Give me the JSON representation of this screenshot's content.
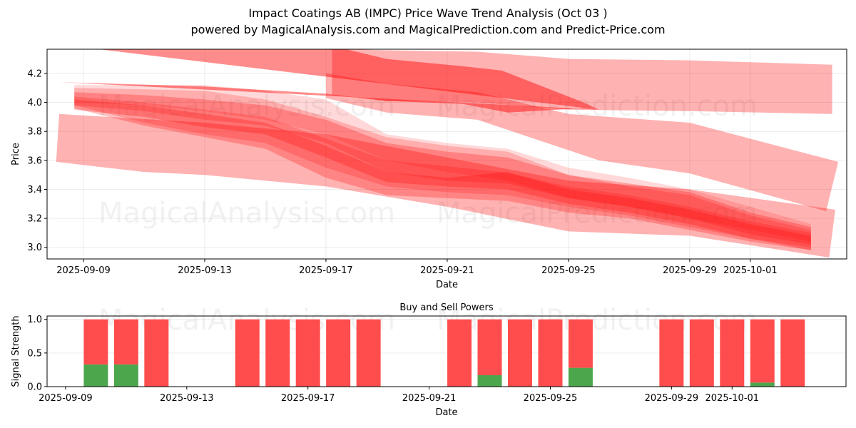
{
  "header": {
    "title": "Impact Coatings AB (IMPC) Price Wave Trend Analysis (Oct 03 )",
    "subtitle": "powered by MagicalAnalysis.com and MagicalPrediction.com and Predict-Price.com"
  },
  "watermarks": [
    "MagicalAnalysis.com",
    "MagicalPrediction.com"
  ],
  "chart_data": [
    {
      "type": "area",
      "title": "Price Wave Trend Analysis",
      "xlabel": "Date",
      "ylabel": "Price",
      "base_date": "2025-09-09",
      "xlim_days": [
        -1.2,
        25.18
      ],
      "ylim": [
        2.92,
        4.367
      ],
      "grid": true,
      "x_ticks": [
        {
          "day": 0,
          "label": "2025-09-09"
        },
        {
          "day": 4,
          "label": "2025-09-13"
        },
        {
          "day": 8,
          "label": "2025-09-17"
        },
        {
          "day": 12,
          "label": "2025-09-21"
        },
        {
          "day": 16,
          "label": "2025-09-25"
        },
        {
          "day": 20,
          "label": "2025-09-29"
        },
        {
          "day": 22,
          "label": "2025-10-01"
        }
      ],
      "y_ticks": [
        3.0,
        3.2,
        3.4,
        3.6,
        3.8,
        4.0,
        4.2
      ],
      "color": "#ff0000",
      "bands": [
        {
          "name": "upper-dark-band",
          "opacity": 0.45,
          "upper": [
            [
              -0.8,
              4.4
            ],
            [
              8,
              4.4
            ],
            [
              10,
              4.3
            ],
            [
              12.5,
              4.25
            ],
            [
              13.8,
              4.22
            ],
            [
              16.5,
              4.0
            ],
            [
              17,
              3.95
            ]
          ],
          "lower": [
            [
              -0.8,
              4.14
            ],
            [
              4,
              4.11
            ],
            [
              8,
              4.06
            ],
            [
              10,
              4.01
            ],
            [
              12.5,
              3.99
            ],
            [
              14,
              3.93
            ],
            [
              16.5,
              3.96
            ],
            [
              17,
              3.95
            ]
          ]
        },
        {
          "name": "upper-light-band",
          "opacity": 0.3,
          "upper": [
            [
              8.2,
              4.37
            ],
            [
              10,
              4.36
            ],
            [
              13,
              4.35
            ],
            [
              16,
              4.3
            ],
            [
              20,
              4.29
            ],
            [
              24.7,
              4.26
            ]
          ],
          "lower": [
            [
              24.7,
              3.92
            ],
            [
              20,
              3.94
            ],
            [
              16,
              3.95
            ],
            [
              13,
              4.0
            ],
            [
              10,
              4.01
            ],
            [
              8.2,
              4.05
            ]
          ]
        },
        {
          "name": "middle-wide-band",
          "opacity": 0.3,
          "upper": [
            [
              8,
              4.2
            ],
            [
              10,
              4.13
            ],
            [
              13,
              4.07
            ],
            [
              16,
              3.92
            ],
            [
              20,
              3.86
            ],
            [
              24.9,
              3.59
            ]
          ],
          "lower": [
            [
              24.5,
              3.25
            ],
            [
              20,
              3.51
            ],
            [
              17,
              3.6
            ],
            [
              13,
              3.88
            ],
            [
              10,
              3.93
            ],
            [
              8,
              4.03
            ]
          ]
        },
        {
          "name": "lower-wide-band",
          "opacity": 0.3,
          "upper": [
            [
              -0.8,
              3.92
            ],
            [
              4,
              3.86
            ],
            [
              8,
              3.78
            ],
            [
              12,
              3.62
            ],
            [
              16,
              3.46
            ],
            [
              20,
              3.4
            ],
            [
              24.8,
              3.26
            ]
          ],
          "lower": [
            [
              24.6,
              2.93
            ],
            [
              20,
              3.08
            ],
            [
              16,
              3.11
            ],
            [
              12,
              3.28
            ],
            [
              8,
              3.42
            ],
            [
              4,
              3.5
            ],
            [
              2,
              3.52
            ],
            [
              -0.9,
              3.59
            ]
          ]
        },
        {
          "name": "core-band-1",
          "opacity": 0.25,
          "upper": [
            [
              -0.3,
              4.07
            ],
            [
              2,
              4.05
            ],
            [
              4,
              4.02
            ],
            [
              6,
              3.98
            ],
            [
              8,
              3.88
            ],
            [
              10,
              3.72
            ],
            [
              12,
              3.66
            ],
            [
              14,
              3.62
            ],
            [
              16,
              3.5
            ],
            [
              18,
              3.44
            ],
            [
              20,
              3.38
            ],
            [
              22,
              3.24
            ],
            [
              24,
              3.14
            ]
          ],
          "lower": [
            [
              24,
              2.98
            ],
            [
              22,
              3.06
            ],
            [
              20,
              3.16
            ],
            [
              18,
              3.24
            ],
            [
              16,
              3.3
            ],
            [
              14,
              3.4
            ],
            [
              12,
              3.42
            ],
            [
              10,
              3.45
            ],
            [
              8,
              3.62
            ],
            [
              6,
              3.78
            ],
            [
              4,
              3.83
            ],
            [
              2,
              3.9
            ],
            [
              -0.3,
              3.95
            ]
          ]
        },
        {
          "name": "core-band-2",
          "opacity": 0.2,
          "upper": [
            [
              -0.3,
              4.1
            ],
            [
              2,
              4.09
            ],
            [
              4,
              4.08
            ],
            [
              6,
              4.02
            ],
            [
              8,
              3.9
            ],
            [
              10,
              3.76
            ],
            [
              12,
              3.7
            ],
            [
              14,
              3.66
            ],
            [
              16,
              3.5
            ],
            [
              18,
              3.42
            ],
            [
              20,
              3.36
            ],
            [
              22,
              3.22
            ],
            [
              24,
              3.12
            ]
          ],
          "lower": [
            [
              24,
              3.02
            ],
            [
              22,
              3.09
            ],
            [
              20,
              3.2
            ],
            [
              18,
              3.28
            ],
            [
              16,
              3.34
            ],
            [
              14,
              3.44
            ],
            [
              12,
              3.46
            ],
            [
              10,
              3.52
            ],
            [
              8,
              3.72
            ],
            [
              6,
              3.84
            ],
            [
              4,
              3.88
            ],
            [
              2,
              3.94
            ],
            [
              -0.3,
              3.98
            ]
          ]
        },
        {
          "name": "core-band-3",
          "opacity": 0.2,
          "upper": [
            [
              -0.3,
              4.04
            ],
            [
              2,
              4.0
            ],
            [
              4,
              3.95
            ],
            [
              6,
              3.9
            ],
            [
              8,
              3.75
            ],
            [
              10,
              3.6
            ],
            [
              12,
              3.56
            ],
            [
              13.8,
              3.52
            ],
            [
              16,
              3.42
            ],
            [
              18,
              3.36
            ],
            [
              20,
              3.28
            ],
            [
              22,
              3.18
            ],
            [
              24,
              3.1
            ]
          ],
          "lower": [
            [
              24,
              3.0
            ],
            [
              22,
              3.06
            ],
            [
              20,
              3.14
            ],
            [
              18,
              3.22
            ],
            [
              16,
              3.28
            ],
            [
              14,
              3.36
            ],
            [
              12,
              3.38
            ],
            [
              10,
              3.42
            ],
            [
              8,
              3.55
            ],
            [
              6,
              3.72
            ],
            [
              4,
              3.78
            ],
            [
              2,
              3.86
            ],
            [
              -0.3,
              3.98
            ]
          ]
        },
        {
          "name": "core-band-4",
          "opacity": 0.15,
          "upper": [
            [
              -0.3,
              4.12
            ],
            [
              2,
              4.12
            ],
            [
              4,
              4.12
            ],
            [
              6,
              4.08
            ],
            [
              8,
              4.02
            ],
            [
              10,
              3.78
            ],
            [
              12,
              3.72
            ],
            [
              14,
              3.68
            ],
            [
              16,
              3.55
            ],
            [
              18,
              3.48
            ],
            [
              20,
              3.4
            ],
            [
              22,
              3.28
            ],
            [
              24,
              3.16
            ]
          ],
          "lower": [
            [
              24,
              3.04
            ],
            [
              22,
              3.12
            ],
            [
              20,
              3.2
            ],
            [
              18,
              3.28
            ],
            [
              16,
              3.34
            ],
            [
              14,
              3.46
            ],
            [
              12,
              3.52
            ],
            [
              10,
              3.6
            ],
            [
              8,
              3.78
            ],
            [
              6,
              3.88
            ],
            [
              4,
              3.94
            ],
            [
              2,
              3.98
            ],
            [
              -0.3,
              4.0
            ]
          ]
        },
        {
          "name": "core-band-5",
          "opacity": 0.25,
          "upper": [
            [
              -0.3,
              4.02
            ],
            [
              2,
              3.98
            ],
            [
              4,
              3.92
            ],
            [
              6,
              3.86
            ],
            [
              8,
              3.7
            ],
            [
              10,
              3.52
            ],
            [
              12,
              3.48
            ],
            [
              14,
              3.52
            ],
            [
              16,
              3.4
            ],
            [
              18,
              3.34
            ],
            [
              20,
              3.26
            ],
            [
              22,
              3.16
            ],
            [
              24,
              3.08
            ]
          ],
          "lower": [
            [
              24,
              2.98
            ],
            [
              22,
              3.04
            ],
            [
              20,
              3.12
            ],
            [
              18,
              3.2
            ],
            [
              16,
              3.24
            ],
            [
              14,
              3.32
            ],
            [
              12,
              3.34
            ],
            [
              10,
              3.36
            ],
            [
              8,
              3.48
            ],
            [
              6,
              3.68
            ],
            [
              4,
              3.76
            ],
            [
              2,
              3.84
            ],
            [
              -0.3,
              3.96
            ]
          ]
        }
      ]
    },
    {
      "type": "bar",
      "title": "Buy and Sell Powers",
      "xlabel": "Date",
      "ylabel": "Signal Strength",
      "base_date": "2025-09-09",
      "xlim_days": [
        -0.61,
        25.76
      ],
      "ylim": [
        0,
        1.05
      ],
      "y_ticks": [
        0.0,
        0.5,
        1.0
      ],
      "x_ticks": [
        {
          "day": 0,
          "label": "2025-09-09"
        },
        {
          "day": 4,
          "label": "2025-09-13"
        },
        {
          "day": 8,
          "label": "2025-09-17"
        },
        {
          "day": 12,
          "label": "2025-09-21"
        },
        {
          "day": 16,
          "label": "2025-09-25"
        },
        {
          "day": 20,
          "label": "2025-09-29"
        },
        {
          "day": 22,
          "label": "2025-10-01"
        }
      ],
      "series": [
        {
          "name": "Buy",
          "color": "#4ca64c"
        },
        {
          "name": "Sell",
          "color": "#ff4c4c"
        }
      ],
      "bars": [
        {
          "date": "2025-09-10",
          "day": 1,
          "buy": 0.33,
          "sell": 0.67
        },
        {
          "date": "2025-09-11",
          "day": 2,
          "buy": 0.33,
          "sell": 0.67
        },
        {
          "date": "2025-09-12",
          "day": 3,
          "buy": 0.0,
          "sell": 1.0
        },
        {
          "date": "2025-09-15",
          "day": 6,
          "buy": 0.0,
          "sell": 1.0
        },
        {
          "date": "2025-09-16",
          "day": 7,
          "buy": 0.0,
          "sell": 1.0
        },
        {
          "date": "2025-09-17",
          "day": 8,
          "buy": 0.0,
          "sell": 1.0
        },
        {
          "date": "2025-09-18",
          "day": 9,
          "buy": 0.0,
          "sell": 1.0
        },
        {
          "date": "2025-09-19",
          "day": 10,
          "buy": 0.0,
          "sell": 1.0
        },
        {
          "date": "2025-09-22",
          "day": 13,
          "buy": 0.0,
          "sell": 1.0
        },
        {
          "date": "2025-09-23",
          "day": 14,
          "buy": 0.17,
          "sell": 0.83
        },
        {
          "date": "2025-09-24",
          "day": 15,
          "buy": 0.0,
          "sell": 1.0
        },
        {
          "date": "2025-09-25",
          "day": 16,
          "buy": 0.0,
          "sell": 1.0
        },
        {
          "date": "2025-09-26",
          "day": 17,
          "buy": 0.28,
          "sell": 0.72
        },
        {
          "date": "2025-09-29",
          "day": 20,
          "buy": 0.0,
          "sell": 1.0
        },
        {
          "date": "2025-09-30",
          "day": 21,
          "buy": 0.0,
          "sell": 1.0
        },
        {
          "date": "2025-10-01",
          "day": 22,
          "buy": 0.0,
          "sell": 1.0
        },
        {
          "date": "2025-10-02",
          "day": 23,
          "buy": 0.06,
          "sell": 0.94
        },
        {
          "date": "2025-10-03",
          "day": 24,
          "buy": 0.0,
          "sell": 1.0
        }
      ]
    }
  ]
}
